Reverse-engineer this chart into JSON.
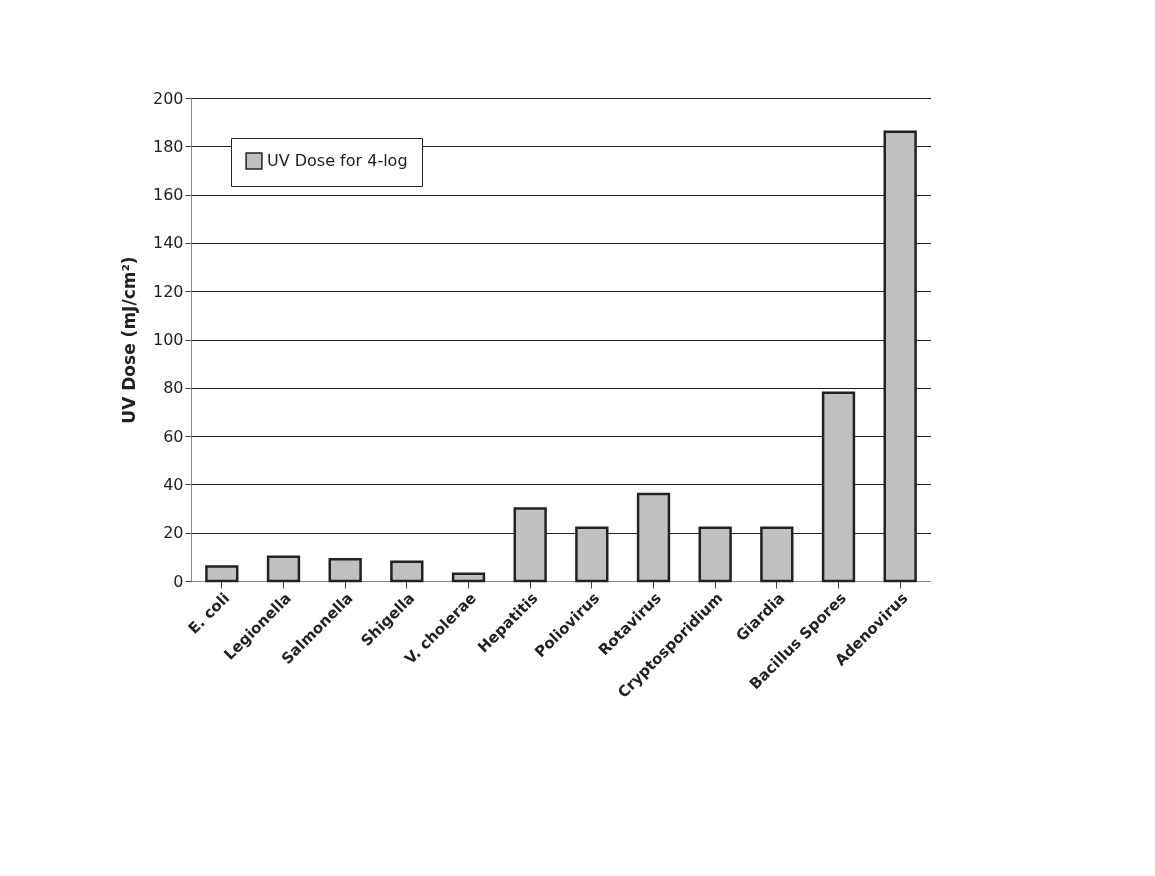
{
  "chart_data": {
    "type": "bar",
    "ylabel": "UV Dose (mJ/cm²)",
    "categories": [
      "E. coli",
      "Legionella",
      "Salmonella",
      "Shigella",
      "V. cholerae",
      "Hepatitis",
      "Poliovirus",
      "Rotavirus",
      "Cryptosporidium",
      "Giardia",
      "Bacillus Spores",
      "Adenovirus"
    ],
    "series": [
      {
        "name": "UV Dose for 4-log",
        "color": "#c0c0c0",
        "values": [
          6,
          10,
          9,
          8,
          3,
          30,
          22,
          36,
          22,
          22,
          78,
          186
        ]
      }
    ],
    "ylim": [
      0,
      200
    ],
    "yticks": [
      0,
      20,
      40,
      60,
      80,
      100,
      120,
      140,
      160,
      180,
      200
    ],
    "grid": "y",
    "legend": "top left"
  }
}
